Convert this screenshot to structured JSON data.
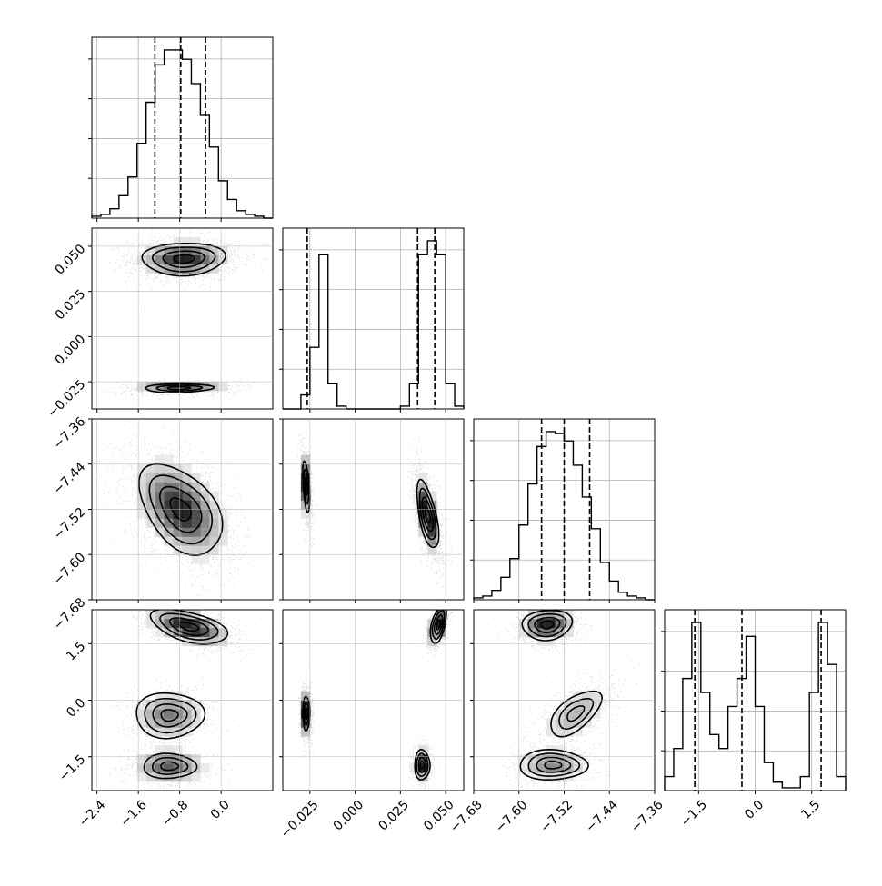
{
  "chart_data": {
    "type": "corner",
    "parameters": [
      {
        "range": [
          -2.5,
          1.0
        ],
        "ticks": [
          -2.4,
          -1.6,
          -0.8,
          0.0
        ],
        "tick_labels": [
          "−2.4",
          "−1.6",
          "−0.8",
          "0.0"
        ],
        "quantiles": [
          -1.28,
          -0.78,
          -0.3
        ]
      },
      {
        "range": [
          -0.04,
          0.06
        ],
        "ticks": [
          -0.025,
          0.0,
          0.025,
          0.05
        ],
        "tick_labels": [
          "−0.025",
          "0.000",
          "0.025",
          "0.050"
        ],
        "quantiles": [
          -0.0265,
          0.0345,
          0.044
        ]
      },
      {
        "range": [
          -7.68,
          -7.36
        ],
        "ticks": [
          -7.68,
          -7.6,
          -7.52,
          -7.44,
          -7.36
        ],
        "tick_labels": [
          "−7.68",
          "−7.60",
          "−7.52",
          "−7.44",
          "−7.36"
        ],
        "quantiles": [
          -7.56,
          -7.52,
          -7.475
        ]
      },
      {
        "range": [
          -2.4,
          2.4
        ],
        "ticks": [
          -1.5,
          0.0,
          1.5
        ],
        "tick_labels": [
          "−1.5",
          "0.0",
          "1.5"
        ],
        "quantiles": [
          -1.6,
          -0.35,
          1.75
        ]
      }
    ],
    "histograms": [
      [
        1,
        2,
        5,
        12,
        22,
        40,
        62,
        82,
        90,
        90,
        85,
        72,
        55,
        38,
        20,
        10,
        4,
        2,
        1,
        0
      ],
      [
        0,
        0,
        5,
        22,
        55,
        9,
        1,
        0,
        0,
        0,
        0,
        0,
        0,
        1,
        9,
        55,
        60,
        55,
        9,
        1
      ],
      [
        1,
        2,
        5,
        12,
        22,
        40,
        62,
        82,
        90,
        89,
        85,
        72,
        55,
        38,
        20,
        10,
        4,
        2,
        1,
        0
      ],
      [
        5,
        15,
        40,
        60,
        35,
        20,
        15,
        30,
        40,
        55,
        30,
        10,
        3,
        1,
        1,
        5,
        35,
        60,
        45,
        5
      ]
    ],
    "modes_2d": [
      {
        "pair": [
          1,
          0
        ],
        "clusters": [
          {
            "x": -0.72,
            "y": 0.043,
            "sx": 0.4,
            "sy": 0.0045,
            "rho": 0.05,
            "w": 0.75
          },
          {
            "x": -0.82,
            "y": -0.0285,
            "sx": 0.44,
            "sy": 0.0016,
            "rho": 0.1,
            "w": 0.25
          }
        ]
      },
      {
        "pair": [
          2,
          0
        ],
        "clusters": [
          {
            "x": -0.78,
            "y": -7.52,
            "sx": 0.4,
            "sy": 0.04,
            "rho": -0.45,
            "w": 1.0
          }
        ]
      },
      {
        "pair": [
          2,
          1
        ],
        "clusters": [
          {
            "x": -0.027,
            "y": -7.48,
            "sx": 0.0013,
            "sy": 0.03,
            "rho": -0.5,
            "w": 0.25
          },
          {
            "x": 0.04,
            "y": -7.53,
            "sx": 0.003,
            "sy": 0.03,
            "rho": -0.6,
            "w": 0.75
          }
        ]
      },
      {
        "pair": [
          3,
          0
        ],
        "clusters": [
          {
            "x": -0.62,
            "y": 1.95,
            "sx": 0.37,
            "sy": 0.23,
            "rho": -0.5,
            "w": 0.42
          },
          {
            "x": -1.0,
            "y": -0.4,
            "sx": 0.33,
            "sy": 0.3,
            "rho": 0.0,
            "w": 0.3
          },
          {
            "x": -1.0,
            "y": -1.75,
            "sx": 0.34,
            "sy": 0.22,
            "rho": 0.0,
            "w": 0.28
          }
        ]
      },
      {
        "pair": [
          3,
          1
        ],
        "clusters": [
          {
            "x": 0.046,
            "y": 2.0,
            "sx": 0.0022,
            "sy": 0.25,
            "rho": 0.5,
            "w": 0.42
          },
          {
            "x": -0.027,
            "y": -0.35,
            "sx": 0.0013,
            "sy": 0.3,
            "rho": 0.0,
            "w": 0.28
          },
          {
            "x": 0.037,
            "y": -1.72,
            "sx": 0.0021,
            "sy": 0.2,
            "rho": 0.0,
            "w": 0.3
          }
        ]
      },
      {
        "pair": [
          3,
          2
        ],
        "clusters": [
          {
            "x": -7.55,
            "y": 2.0,
            "sx": 0.022,
            "sy": 0.2,
            "rho": 0.1,
            "w": 0.42
          },
          {
            "x": -7.5,
            "y": -0.35,
            "sx": 0.03,
            "sy": 0.4,
            "rho": 0.6,
            "w": 0.28
          },
          {
            "x": -7.54,
            "y": -1.72,
            "sx": 0.03,
            "sy": 0.2,
            "rho": 0.0,
            "w": 0.3
          }
        ]
      }
    ]
  }
}
